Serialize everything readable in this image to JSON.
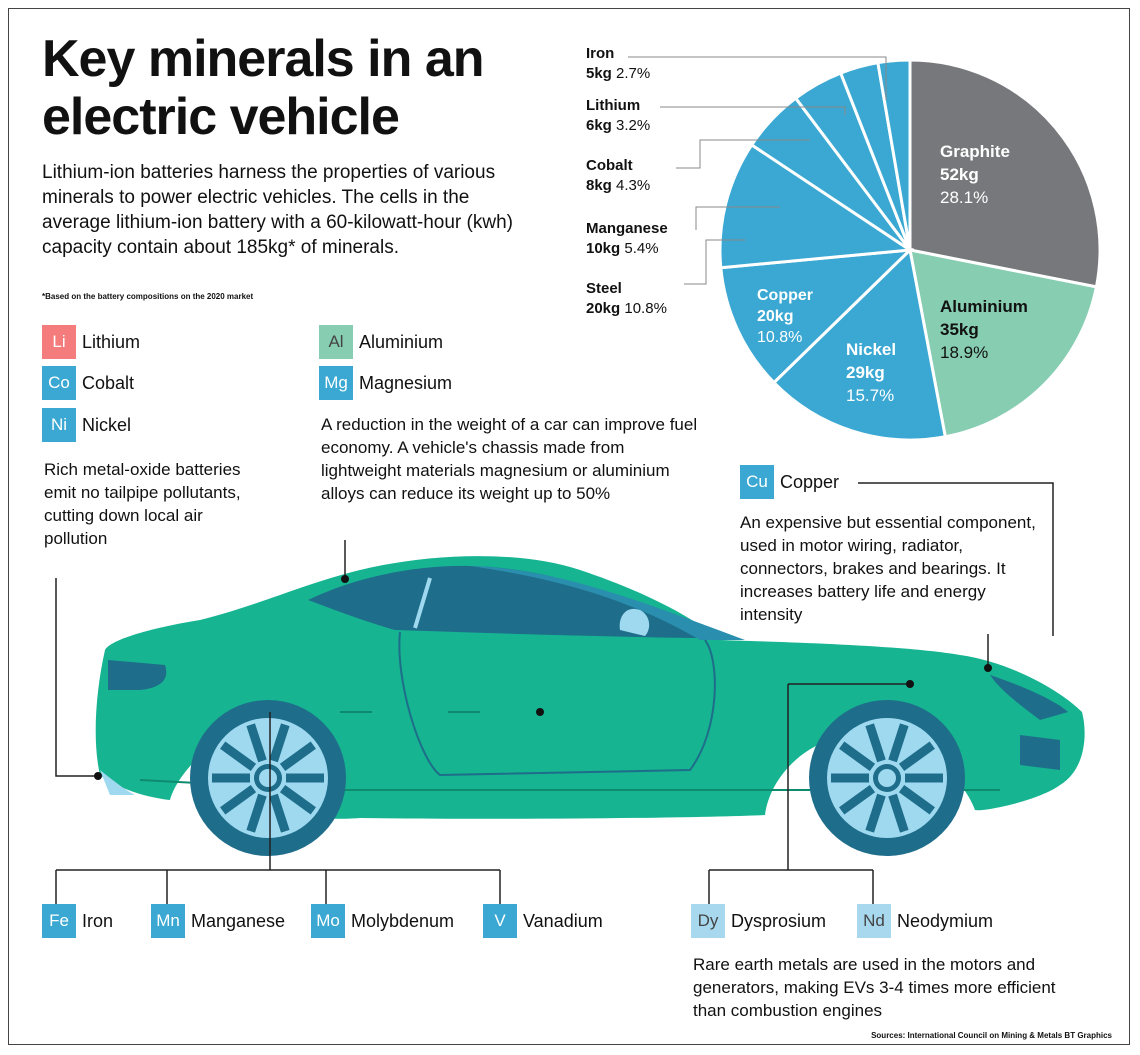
{
  "title": "Key minerals in an electric vehicle",
  "intro": "Lithium-ion batteries harness the properties of various minerals to power electric vehicles. The cells in the average lithium-ion battery with a 60-kilowatt-hour (kwh) capacity contain about 185kg* of minerals.",
  "footnote": "*Based on the battery compositions on the 2020 market",
  "colors": {
    "graphite": "#77787b",
    "aluminium": "#86cdb1",
    "blue": "#3aa8d2",
    "car_body": "#16b491",
    "car_dark": "#1e6d8a",
    "wheel": "#9fd9f0",
    "lithium_red": "#f47c7c",
    "rare_earth": "#a8d8ee"
  },
  "chart_data": {
    "type": "pie",
    "total_kg": 185,
    "slices": [
      {
        "name": "Graphite",
        "kg": 52,
        "pct": 28.1,
        "mass_label": "52kg",
        "pct_label": "28.1%"
      },
      {
        "name": "Aluminium",
        "kg": 35,
        "pct": 18.9,
        "mass_label": "35kg",
        "pct_label": "18.9%"
      },
      {
        "name": "Nickel",
        "kg": 29,
        "pct": 15.7,
        "mass_label": "29kg",
        "pct_label": "15.7%"
      },
      {
        "name": "Copper",
        "kg": 20,
        "pct": 10.8,
        "mass_label": "20kg",
        "pct_label": "10.8%"
      },
      {
        "name": "Steel",
        "kg": 20,
        "pct": 10.8,
        "mass_label": "20kg",
        "pct_label": "10.8%"
      },
      {
        "name": "Manganese",
        "kg": 10,
        "pct": 5.4,
        "mass_label": "10kg",
        "pct_label": "5.4%"
      },
      {
        "name": "Cobalt",
        "kg": 8,
        "pct": 4.3,
        "mass_label": "8kg",
        "pct_label": "4.3%"
      },
      {
        "name": "Lithium",
        "kg": 6,
        "pct": 3.2,
        "mass_label": "6kg",
        "pct_label": "3.2%"
      },
      {
        "name": "Iron",
        "kg": 5,
        "pct": 2.7,
        "mass_label": "5kg",
        "pct_label": "2.7%"
      }
    ]
  },
  "elements": {
    "li": {
      "symbol": "Li",
      "name": "Lithium"
    },
    "co": {
      "symbol": "Co",
      "name": "Cobalt"
    },
    "ni": {
      "symbol": "Ni",
      "name": "Nickel"
    },
    "al": {
      "symbol": "Al",
      "name": "Aluminium"
    },
    "mg": {
      "symbol": "Mg",
      "name": "Magnesium"
    },
    "cu": {
      "symbol": "Cu",
      "name": "Copper"
    },
    "fe": {
      "symbol": "Fe",
      "name": "Iron"
    },
    "mn": {
      "symbol": "Mn",
      "name": "Manganese"
    },
    "mo": {
      "symbol": "Mo",
      "name": "Molybdenum"
    },
    "v": {
      "symbol": "V",
      "name": "Vanadium"
    },
    "dy": {
      "symbol": "Dy",
      "name": "Dysprosium"
    },
    "nd": {
      "symbol": "Nd",
      "name": "Neodymium"
    }
  },
  "notes": {
    "battery": "Rich metal-oxide batteries emit no tailpipe pollutants, cutting down local air pollution",
    "chassis": "A reduction in the weight of a car can improve fuel economy. A vehicle's chassis made from lightweight materials magnesium or aluminium alloys can reduce its weight up to 50%",
    "copper": "An expensive but essential component, used in motor wiring, radiator, connectors, brakes and bearings. It increases battery life and energy intensity",
    "rare_earth": "Rare earth metals are used in the motors and generators, making EVs 3-4 times more efficient than combustion engines"
  },
  "sources": "Sources: International Council on Mining & Metals    BT Graphics"
}
